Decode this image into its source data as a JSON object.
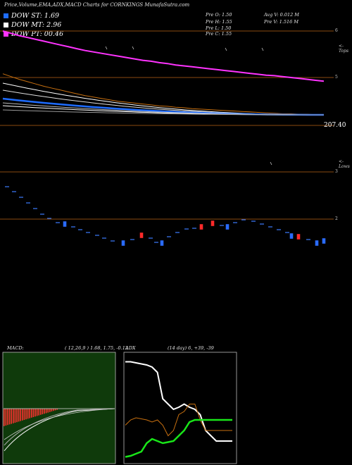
{
  "header": {
    "title": "Price,Volume,EMA,ADX,MACD Charts for CORNKINGS MunafaSutra.com"
  },
  "dow": [
    {
      "label": "DOW ST: 1.69",
      "color": "#1e6cff"
    },
    {
      "label": "DOW MT: 2.96",
      "color": "#ffffff"
    },
    {
      "label": "DOW PT: 00.46",
      "color": "#ff33ff"
    }
  ],
  "ohlc": {
    "open": "Pre O: 1.50",
    "high": "Pre H: 1.55",
    "low": "Pre L: 1.50",
    "close": "Pre C: 1.55",
    "avg_vol": "Avg V: 0.012 M",
    "vol": "Pre V: 1.516 M"
  },
  "labels": {
    "price_top": "6",
    "price_mid": "5",
    "value_207": "207.40",
    "price_3": "3",
    "price_2": "2",
    "tops": "<-Tops",
    "lows": "<-Lows"
  },
  "macd": {
    "title": "MACD:",
    "params": "( 12,26,9 ) 1.68, 1.75, -0.12"
  },
  "adx": {
    "title": "ADX",
    "params": "(14 day) 6, +39, -39"
  },
  "colors": {
    "magenta": "#ff33ff",
    "orange": "#c87010",
    "blue": "#1e6cff",
    "white": "#ffffff",
    "grid": "#8a4a10",
    "up": "#2a6bff",
    "down": "#ff2a2a",
    "macd_bg": "#0f3a0b",
    "red_bar": "#ff3030",
    "green_line": "#19e619"
  },
  "chart_data": [
    {
      "type": "line",
      "title": "",
      "note": "price / EMA panel",
      "x": [
        0,
        1,
        2,
        3,
        4,
        5,
        6,
        7,
        8,
        9,
        10,
        11,
        12,
        13,
        14,
        15,
        16,
        17,
        18,
        19,
        20,
        21,
        22,
        23,
        24,
        25,
        26,
        27,
        28,
        29,
        30,
        31,
        32,
        33,
        34,
        35,
        36,
        37,
        38,
        39
      ],
      "series": [
        {
          "key": "ema_magenta",
          "values": [
            6.0,
            5.95,
            5.9,
            5.86,
            5.82,
            5.78,
            5.74,
            5.7,
            5.66,
            5.62,
            5.58,
            5.55,
            5.52,
            5.49,
            5.46,
            5.43,
            5.4,
            5.37,
            5.35,
            5.32,
            5.3,
            5.27,
            5.25,
            5.23,
            5.21,
            5.19,
            5.17,
            5.15,
            5.13,
            5.11,
            5.09,
            5.07,
            5.05,
            5.04,
            5.02,
            5.0,
            4.98,
            4.96,
            4.94,
            4.92
          ]
        },
        {
          "key": "ema_orange",
          "values": [
            5.08,
            5.02,
            4.96,
            4.91,
            4.86,
            4.81,
            4.77,
            4.73,
            4.69,
            4.65,
            4.61,
            4.58,
            4.55,
            4.52,
            4.49,
            4.47,
            4.45,
            4.43,
            4.41,
            4.39,
            4.38,
            4.36,
            4.35,
            4.33,
            4.32,
            4.31,
            4.3,
            4.29,
            4.28,
            4.27,
            4.26,
            4.25,
            4.24,
            4.23,
            4.22,
            4.22,
            4.21,
            4.21,
            4.2,
            4.2
          ]
        }
      ]
    },
    {
      "type": "bar",
      "note": "MACD histogram",
      "values": [
        -0.62,
        -0.6,
        -0.58,
        -0.56,
        -0.54,
        -0.52,
        -0.5,
        -0.48,
        -0.46,
        -0.44,
        -0.42,
        -0.4,
        -0.38,
        -0.36,
        -0.34,
        -0.32,
        -0.3,
        -0.28,
        -0.26,
        -0.24,
        -0.22,
        -0.2,
        -0.18,
        -0.16,
        -0.14,
        -0.12,
        -0.1,
        -0.08,
        -0.06,
        -0.04
      ]
    },
    {
      "type": "line",
      "note": "ADX panel",
      "series": [
        {
          "key": "adx_white",
          "values": [
            95,
            95,
            94,
            93,
            92,
            90,
            85,
            60,
            55,
            50,
            52,
            55,
            52,
            50,
            45,
            30,
            25,
            20,
            20,
            20,
            20
          ]
        },
        {
          "key": "adx_orange",
          "values": [
            35,
            40,
            42,
            41,
            40,
            38,
            40,
            35,
            25,
            30,
            45,
            48,
            55,
            55,
            40,
            30,
            30,
            30,
            30,
            30,
            30
          ]
        },
        {
          "key": "adx_green",
          "values": [
            5,
            6,
            8,
            10,
            18,
            22,
            20,
            18,
            19,
            20,
            25,
            30,
            38,
            40,
            40,
            40,
            40,
            40,
            40,
            40,
            40
          ]
        }
      ]
    }
  ]
}
